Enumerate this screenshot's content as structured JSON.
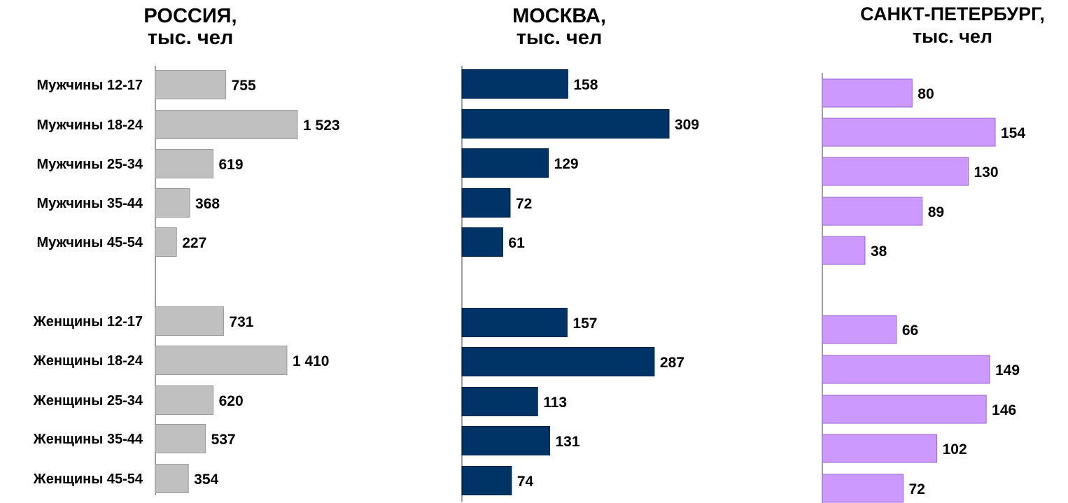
{
  "chart_data": [
    {
      "type": "bar",
      "orientation": "horizontal",
      "title_line1": "РОССИЯ,",
      "title_line2": "тыс. чел",
      "groups": [
        {
          "categories": [
            "Мужчины 12-17",
            "Мужчины 18-24",
            "Мужчины 25-34",
            "Мужчины 35-44",
            "Мужчины 45-54"
          ],
          "values": [
            755,
            1523,
            619,
            368,
            227
          ],
          "value_labels": [
            "755",
            "1 523",
            "619",
            "368",
            "227"
          ]
        },
        {
          "categories": [
            "Женщины 12-17",
            "Женщины 18-24",
            "Женщины 25-34",
            "Женщины 35-44",
            "Женщины 45-54"
          ],
          "values": [
            731,
            1410,
            620,
            537,
            354
          ],
          "value_labels": [
            "731",
            "1 410",
            "620",
            "537",
            "354"
          ]
        }
      ],
      "bar_color": "#c0c0c0",
      "bar_stroke": "#9a9a9a",
      "grid": false,
      "legend": "none"
    },
    {
      "type": "bar",
      "orientation": "horizontal",
      "title_line1": "МОСКВА,",
      "title_line2": "тыс. чел",
      "groups": [
        {
          "categories": [
            "Мужчины 12-17",
            "Мужчины 18-24",
            "Мужчины 25-34",
            "Мужчины 35-44",
            "Мужчины 45-54"
          ],
          "values": [
            158,
            309,
            129,
            72,
            61
          ],
          "value_labels": [
            "158",
            "309",
            "129",
            "72",
            "61"
          ]
        },
        {
          "categories": [
            "Женщины 12-17",
            "Женщины 18-24",
            "Женщины 25-34",
            "Женщины 35-44",
            "Женщины 45-54"
          ],
          "values": [
            157,
            287,
            113,
            131,
            74
          ],
          "value_labels": [
            "157",
            "287",
            "113",
            "131",
            "74"
          ]
        }
      ],
      "bar_color": "#003366",
      "bar_stroke": "#002244",
      "grid": false,
      "legend": "none"
    },
    {
      "type": "bar",
      "orientation": "horizontal",
      "title_line1": "САНКТ-ПЕТЕРБУРГ,",
      "title_line2": "тыс. чел",
      "groups": [
        {
          "categories": [
            "Мужчины 12-17",
            "Мужчины 18-24",
            "Мужчины 25-34",
            "Мужчины 35-44",
            "Мужчины 45-54"
          ],
          "values": [
            80,
            154,
            130,
            89,
            38
          ],
          "value_labels": [
            "80",
            "154",
            "130",
            "89",
            "38"
          ]
        },
        {
          "categories": [
            "Женщины 12-17",
            "Женщины 18-24",
            "Женщины 25-34",
            "Женщины 35-44",
            "Женщины 45-54"
          ],
          "values": [
            66,
            149,
            146,
            102,
            72
          ],
          "value_labels": [
            "66",
            "149",
            "146",
            "102",
            "72"
          ]
        }
      ],
      "bar_color": "#cc99ff",
      "bar_stroke": "#9966cc",
      "grid": false,
      "legend": "none"
    }
  ]
}
